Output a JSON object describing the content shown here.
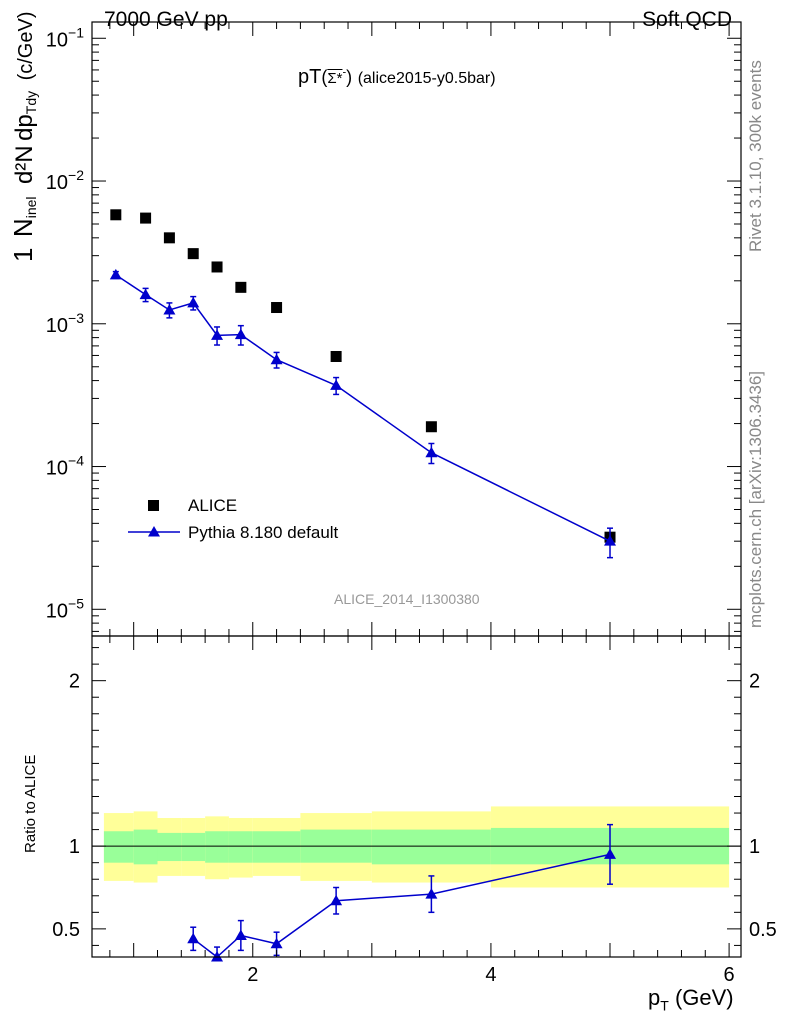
{
  "header": {
    "left": "7000 GeV pp",
    "right": "Soft QCD"
  },
  "side_labels": {
    "rivet": "Rivet 3.1.10,  300k events",
    "mcplots": "mcplots.cern.ch [arXiv:1306.3436]"
  },
  "plot_title": {
    "prefix": "pT",
    "particle": "Σ*",
    "superscript": "-",
    "suffix": "(alice2015-y0.5bar)"
  },
  "watermark": "ALICE_2014_I1300380",
  "upper_ylabel": {
    "one": "1",
    "nevt": "N",
    "nevt_sub": "inel",
    "dN": "d²N",
    "dp": "dp",
    "dp_sub": "Tdy",
    "unit": "(c/GeV)"
  },
  "lower_ylabel": "Ratio to ALICE",
  "xlabel": {
    "main": "p",
    "sub": "T",
    "unit": "(GeV)"
  },
  "legend": [
    {
      "label": "ALICE",
      "color": "#000000",
      "marker": "square"
    },
    {
      "label": "Pythia 8.180 default",
      "color": "#0000cc",
      "marker": "triangle"
    }
  ],
  "chart_data": [
    {
      "type": "scatter",
      "panel": "main",
      "yscale": "log",
      "xlim": [
        0.65,
        6.1
      ],
      "ylim": [
        6.5e-06,
        0.13
      ],
      "x_ticks": [
        2,
        4,
        6
      ],
      "y_ticks": [
        {
          "value": 0.1,
          "mant": "10",
          "exp": "−1"
        },
        {
          "value": 0.01,
          "mant": "10",
          "exp": "−2"
        },
        {
          "value": 0.001,
          "mant": "10",
          "exp": "−3"
        },
        {
          "value": 0.0001,
          "mant": "10",
          "exp": "−4"
        },
        {
          "value": 1e-05,
          "mant": "10",
          "exp": "−5"
        }
      ],
      "series": [
        {
          "name": "ALICE",
          "color": "#000000",
          "x": [
            0.85,
            1.1,
            1.3,
            1.5,
            1.7,
            1.9,
            2.2,
            2.7,
            3.5,
            5.0
          ],
          "values": [
            0.0058,
            0.0055,
            0.004,
            0.0031,
            0.0025,
            0.0018,
            0.0013,
            0.00059,
            0.00019,
            3.2e-05
          ]
        },
        {
          "name": "Pythia 8.180 default",
          "color": "#0000cc",
          "x": [
            0.85,
            1.1,
            1.3,
            1.5,
            1.7,
            1.9,
            2.2,
            2.7,
            3.5,
            5.0
          ],
          "values": [
            0.0022,
            0.0016,
            0.00125,
            0.0014,
            0.00083,
            0.00084,
            0.00056,
            0.00037,
            0.000125,
            3e-05
          ],
          "err": [
            0.00012,
            0.00017,
            0.00015,
            0.00015,
            0.00012,
            0.00013,
            7e-05,
            5e-05,
            2e-05,
            7e-06
          ]
        }
      ]
    },
    {
      "type": "line",
      "panel": "ratio",
      "xlim": [
        0.65,
        6.1
      ],
      "ylim": [
        0.33,
        2.27
      ],
      "x_ticks": [
        2,
        4,
        6
      ],
      "y_ticks": [
        0.5,
        1,
        2
      ],
      "reference": 1,
      "bands": {
        "edges": [
          0.75,
          1.0,
          1.2,
          1.4,
          1.6,
          1.8,
          2.0,
          2.4,
          3.0,
          4.0,
          6.0
        ],
        "green": [
          [
            0.9,
            1.09
          ],
          [
            0.89,
            1.1
          ],
          [
            0.91,
            1.08
          ],
          [
            0.91,
            1.08
          ],
          [
            0.9,
            1.09
          ],
          [
            0.9,
            1.09
          ],
          [
            0.9,
            1.09
          ],
          [
            0.9,
            1.1
          ],
          [
            0.89,
            1.1
          ],
          [
            0.89,
            1.11
          ]
        ],
        "yellow": [
          [
            0.79,
            1.2
          ],
          [
            0.78,
            1.21
          ],
          [
            0.82,
            1.17
          ],
          [
            0.82,
            1.17
          ],
          [
            0.8,
            1.18
          ],
          [
            0.81,
            1.17
          ],
          [
            0.82,
            1.17
          ],
          [
            0.79,
            1.2
          ],
          [
            0.78,
            1.21
          ],
          [
            0.75,
            1.24
          ]
        ]
      },
      "series": [
        {
          "name": "Pythia 8.180 default",
          "color": "#0000cc",
          "x": [
            1.5,
            1.7,
            1.9,
            2.2,
            2.7,
            3.5,
            5.0
          ],
          "values": [
            0.44,
            0.33,
            0.46,
            0.41,
            0.67,
            0.71,
            0.95
          ],
          "err": [
            0.07,
            0.06,
            0.09,
            0.07,
            0.08,
            0.11,
            0.18
          ]
        }
      ]
    }
  ]
}
